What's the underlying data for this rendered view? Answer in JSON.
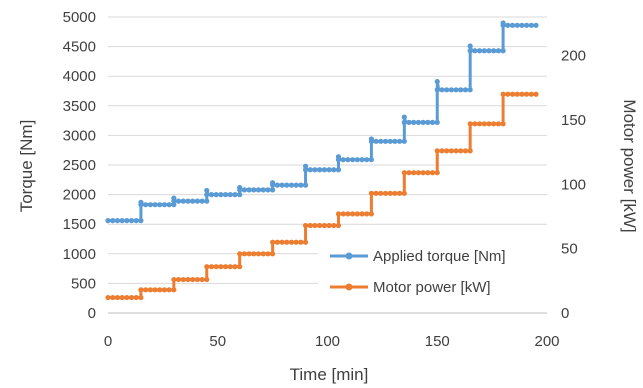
{
  "chart_data": {
    "type": "line",
    "xlabel": "Time [min]",
    "ylabel": "Torque [Nm]",
    "y2label": "Motor power [kW]",
    "xlim": [
      0,
      200
    ],
    "ylim": [
      0,
      5000
    ],
    "y2lim": [
      0,
      230
    ],
    "x_ticks": [
      "0",
      "50",
      "100",
      "150",
      "200"
    ],
    "y_ticks": [
      "0",
      "500",
      "1000",
      "1500",
      "2000",
      "2500",
      "3000",
      "3500",
      "4000",
      "4500",
      "5000"
    ],
    "y2_ticks": [
      "0",
      "50",
      "100",
      "150",
      "200"
    ],
    "grid": "horizontal",
    "legend_position": "lower-right",
    "series": [
      {
        "name": "Applied torque [Nm]",
        "axis": "left",
        "color": "#5B9BD5",
        "steps": [
          {
            "x_start": 0,
            "x_end": 15,
            "y": 1560,
            "spike": null
          },
          {
            "x_start": 15,
            "x_end": 30,
            "y": 1830,
            "spike": 1870
          },
          {
            "x_start": 30,
            "x_end": 45,
            "y": 1890,
            "spike": 1940
          },
          {
            "x_start": 45,
            "x_end": 60,
            "y": 2000,
            "spike": 2070
          },
          {
            "x_start": 60,
            "x_end": 75,
            "y": 2080,
            "spike": 2120
          },
          {
            "x_start": 75,
            "x_end": 90,
            "y": 2160,
            "spike": 2200
          },
          {
            "x_start": 90,
            "x_end": 105,
            "y": 2420,
            "spike": 2480
          },
          {
            "x_start": 105,
            "x_end": 120,
            "y": 2590,
            "spike": 2640
          },
          {
            "x_start": 120,
            "x_end": 135,
            "y": 2900,
            "spike": 2940
          },
          {
            "x_start": 135,
            "x_end": 150,
            "y": 3220,
            "spike": 3310
          },
          {
            "x_start": 150,
            "x_end": 165,
            "y": 3770,
            "spike": 3910
          },
          {
            "x_start": 165,
            "x_end": 180,
            "y": 4430,
            "spike": 4510
          },
          {
            "x_start": 180,
            "x_end": 195,
            "y": 4860,
            "spike": 4900
          }
        ]
      },
      {
        "name": "Motor power [kW]",
        "axis": "right",
        "color": "#ED7D31",
        "steps": [
          {
            "x_start": 0,
            "x_end": 15,
            "y": 12
          },
          {
            "x_start": 15,
            "x_end": 30,
            "y": 18
          },
          {
            "x_start": 30,
            "x_end": 45,
            "y": 26
          },
          {
            "x_start": 45,
            "x_end": 60,
            "y": 36
          },
          {
            "x_start": 60,
            "x_end": 75,
            "y": 46
          },
          {
            "x_start": 75,
            "x_end": 90,
            "y": 55
          },
          {
            "x_start": 90,
            "x_end": 105,
            "y": 68
          },
          {
            "x_start": 105,
            "x_end": 120,
            "y": 77
          },
          {
            "x_start": 120,
            "x_end": 135,
            "y": 93
          },
          {
            "x_start": 135,
            "x_end": 150,
            "y": 109
          },
          {
            "x_start": 150,
            "x_end": 165,
            "y": 126
          },
          {
            "x_start": 165,
            "x_end": 180,
            "y": 147
          },
          {
            "x_start": 180,
            "x_end": 195,
            "y": 170
          }
        ]
      }
    ]
  }
}
